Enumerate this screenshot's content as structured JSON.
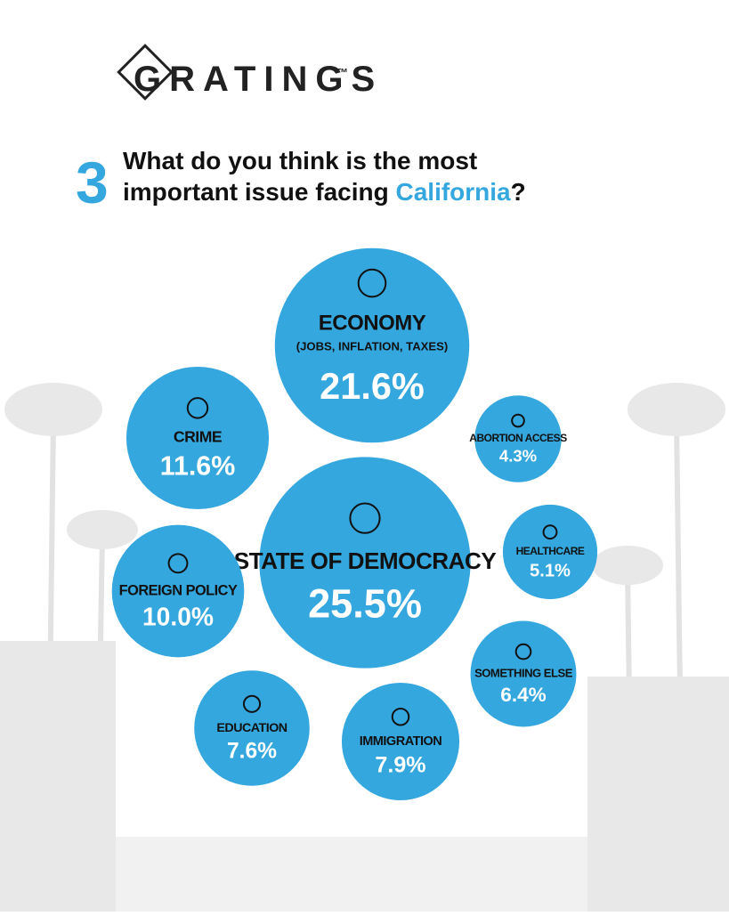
{
  "header": {
    "brand": "GRATINGS",
    "trademark": "™"
  },
  "question": {
    "number": "3",
    "line1": "What do you think is the most",
    "line2_before": "important issue facing ",
    "highlight": "California",
    "line2_after": "?"
  },
  "chart_data": {
    "type": "bubble",
    "color": "#35a7df",
    "categories": [
      "ECONOMY",
      "ABORTION ACCESS",
      "CRIME",
      "STATE OF DEMOCRACY",
      "HEALTHCARE",
      "FOREIGN POLICY",
      "SOMETHING ELSE",
      "EDUCATION",
      "IMMIGRATION"
    ],
    "sublabels": [
      "(JOBS, INFLATION, TAXES)",
      null,
      null,
      null,
      null,
      null,
      null,
      null,
      null
    ],
    "values": [
      21.6,
      4.3,
      11.6,
      25.5,
      5.1,
      10.0,
      6.4,
      7.6,
      7.9
    ],
    "value_labels": [
      "21.6%",
      "4.3%",
      "11.6%",
      "25.5%",
      "5.1%",
      "10.0%",
      "6.4%",
      "7.6%",
      "7.9%"
    ]
  }
}
